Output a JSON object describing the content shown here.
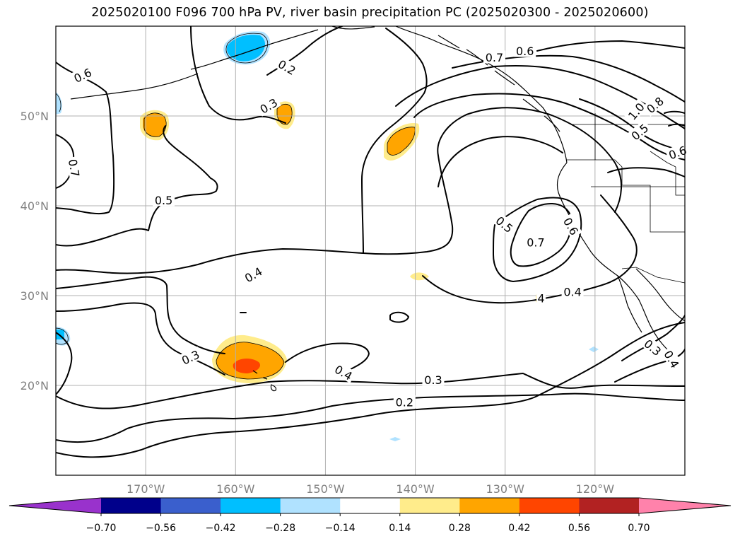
{
  "title": "2025020100 F096 700 hPa PV, river basin precipitation PC (2025020300 - 2025020600)",
  "map": {
    "projection": "PlateCarree",
    "lon_range": [
      -180,
      -110
    ],
    "lat_range": [
      10,
      60
    ],
    "lon_ticks": [
      {
        "lon": -170,
        "label": "170°W"
      },
      {
        "lon": -160,
        "label": "160°W"
      },
      {
        "lon": -150,
        "label": "150°W"
      },
      {
        "lon": -140,
        "label": "140°W"
      },
      {
        "lon": -130,
        "label": "130°W"
      },
      {
        "lon": -120,
        "label": "120°W"
      }
    ],
    "lat_ticks": [
      {
        "lat": 50,
        "label": "50°N"
      },
      {
        "lat": 40,
        "label": "40°N"
      },
      {
        "lat": 30,
        "label": "30°N"
      },
      {
        "lat": 20,
        "label": "20°N"
      }
    ],
    "gridlines": true
  },
  "contour_labels": [
    {
      "text": "0.6",
      "lon": -177,
      "lat": 54.5,
      "rot": 25
    },
    {
      "text": "0.7",
      "lon": -178,
      "lat": 44.2,
      "rot": -80
    },
    {
      "text": "0.5",
      "lon": -168,
      "lat": 40.6,
      "rot": 0
    },
    {
      "text": "0.4",
      "lon": -158,
      "lat": 32.3,
      "rot": 30
    },
    {
      "text": "0.3",
      "lon": -165,
      "lat": 23.1,
      "rot": 25
    },
    {
      "text": "0.3",
      "lon": -156.3,
      "lat": 51.1,
      "rot": 30
    },
    {
      "text": "0.2",
      "lon": -154.3,
      "lat": 55.4,
      "rot": -30
    },
    {
      "text": "0.4",
      "lon": -148,
      "lat": 21.4,
      "rot": -30
    },
    {
      "text": "0.3",
      "lon": -138,
      "lat": 20.6,
      "rot": 0
    },
    {
      "text": "0.2",
      "lon": -141.2,
      "lat": 18.1,
      "rot": 0
    },
    {
      "text": "0.7",
      "lon": -131.2,
      "lat": 56.5,
      "rot": 0
    },
    {
      "text": "0.6",
      "lon": -127.8,
      "lat": 57.2,
      "rot": 0
    },
    {
      "text": "0.8",
      "lon": -113.3,
      "lat": 51.2,
      "rot": 40
    },
    {
      "text": "1.0",
      "lon": -115.4,
      "lat": 50.5,
      "rot": 50
    },
    {
      "text": "0.5",
      "lon": -115,
      "lat": 48.2,
      "rot": 40
    },
    {
      "text": "0.6",
      "lon": -110.8,
      "lat": 45.9,
      "rot": 20
    },
    {
      "text": "0.5",
      "lon": -130.1,
      "lat": 37.9,
      "rot": -40
    },
    {
      "text": "0.7",
      "lon": -126.6,
      "lat": 35.9,
      "rot": 0
    },
    {
      "text": "0.6",
      "lon": -122.7,
      "lat": 37.7,
      "rot": -60
    },
    {
      "text": "0.4",
      "lon": -122.5,
      "lat": 30.4,
      "rot": 0
    },
    {
      "text": "0.3",
      "lon": -113.6,
      "lat": 24.2,
      "rot": -40
    },
    {
      "text": "0.4",
      "lon": -111.5,
      "lat": 22.9,
      "rot": -60
    },
    {
      "text": "4",
      "lon": -126,
      "lat": 29.7,
      "rot": 0
    }
  ],
  "colorbar": {
    "ticks": [
      "−0.70",
      "−0.56",
      "−0.42",
      "−0.28",
      "−0.14",
      "0.14",
      "0.28",
      "0.42",
      "0.56",
      "0.70"
    ],
    "levels": [
      -0.7,
      -0.56,
      -0.42,
      -0.28,
      -0.14,
      0.14,
      0.28,
      0.42,
      0.56,
      0.7
    ],
    "colors": [
      "#9932CC",
      "#00008B",
      "#3A5FCD",
      "#00BFFF",
      "#B0E2FF",
      "#FFFFFF",
      "#FFEC8B",
      "#FFA500",
      "#FF4500",
      "#B22222",
      "#FF82AB"
    ],
    "extend": "both"
  }
}
